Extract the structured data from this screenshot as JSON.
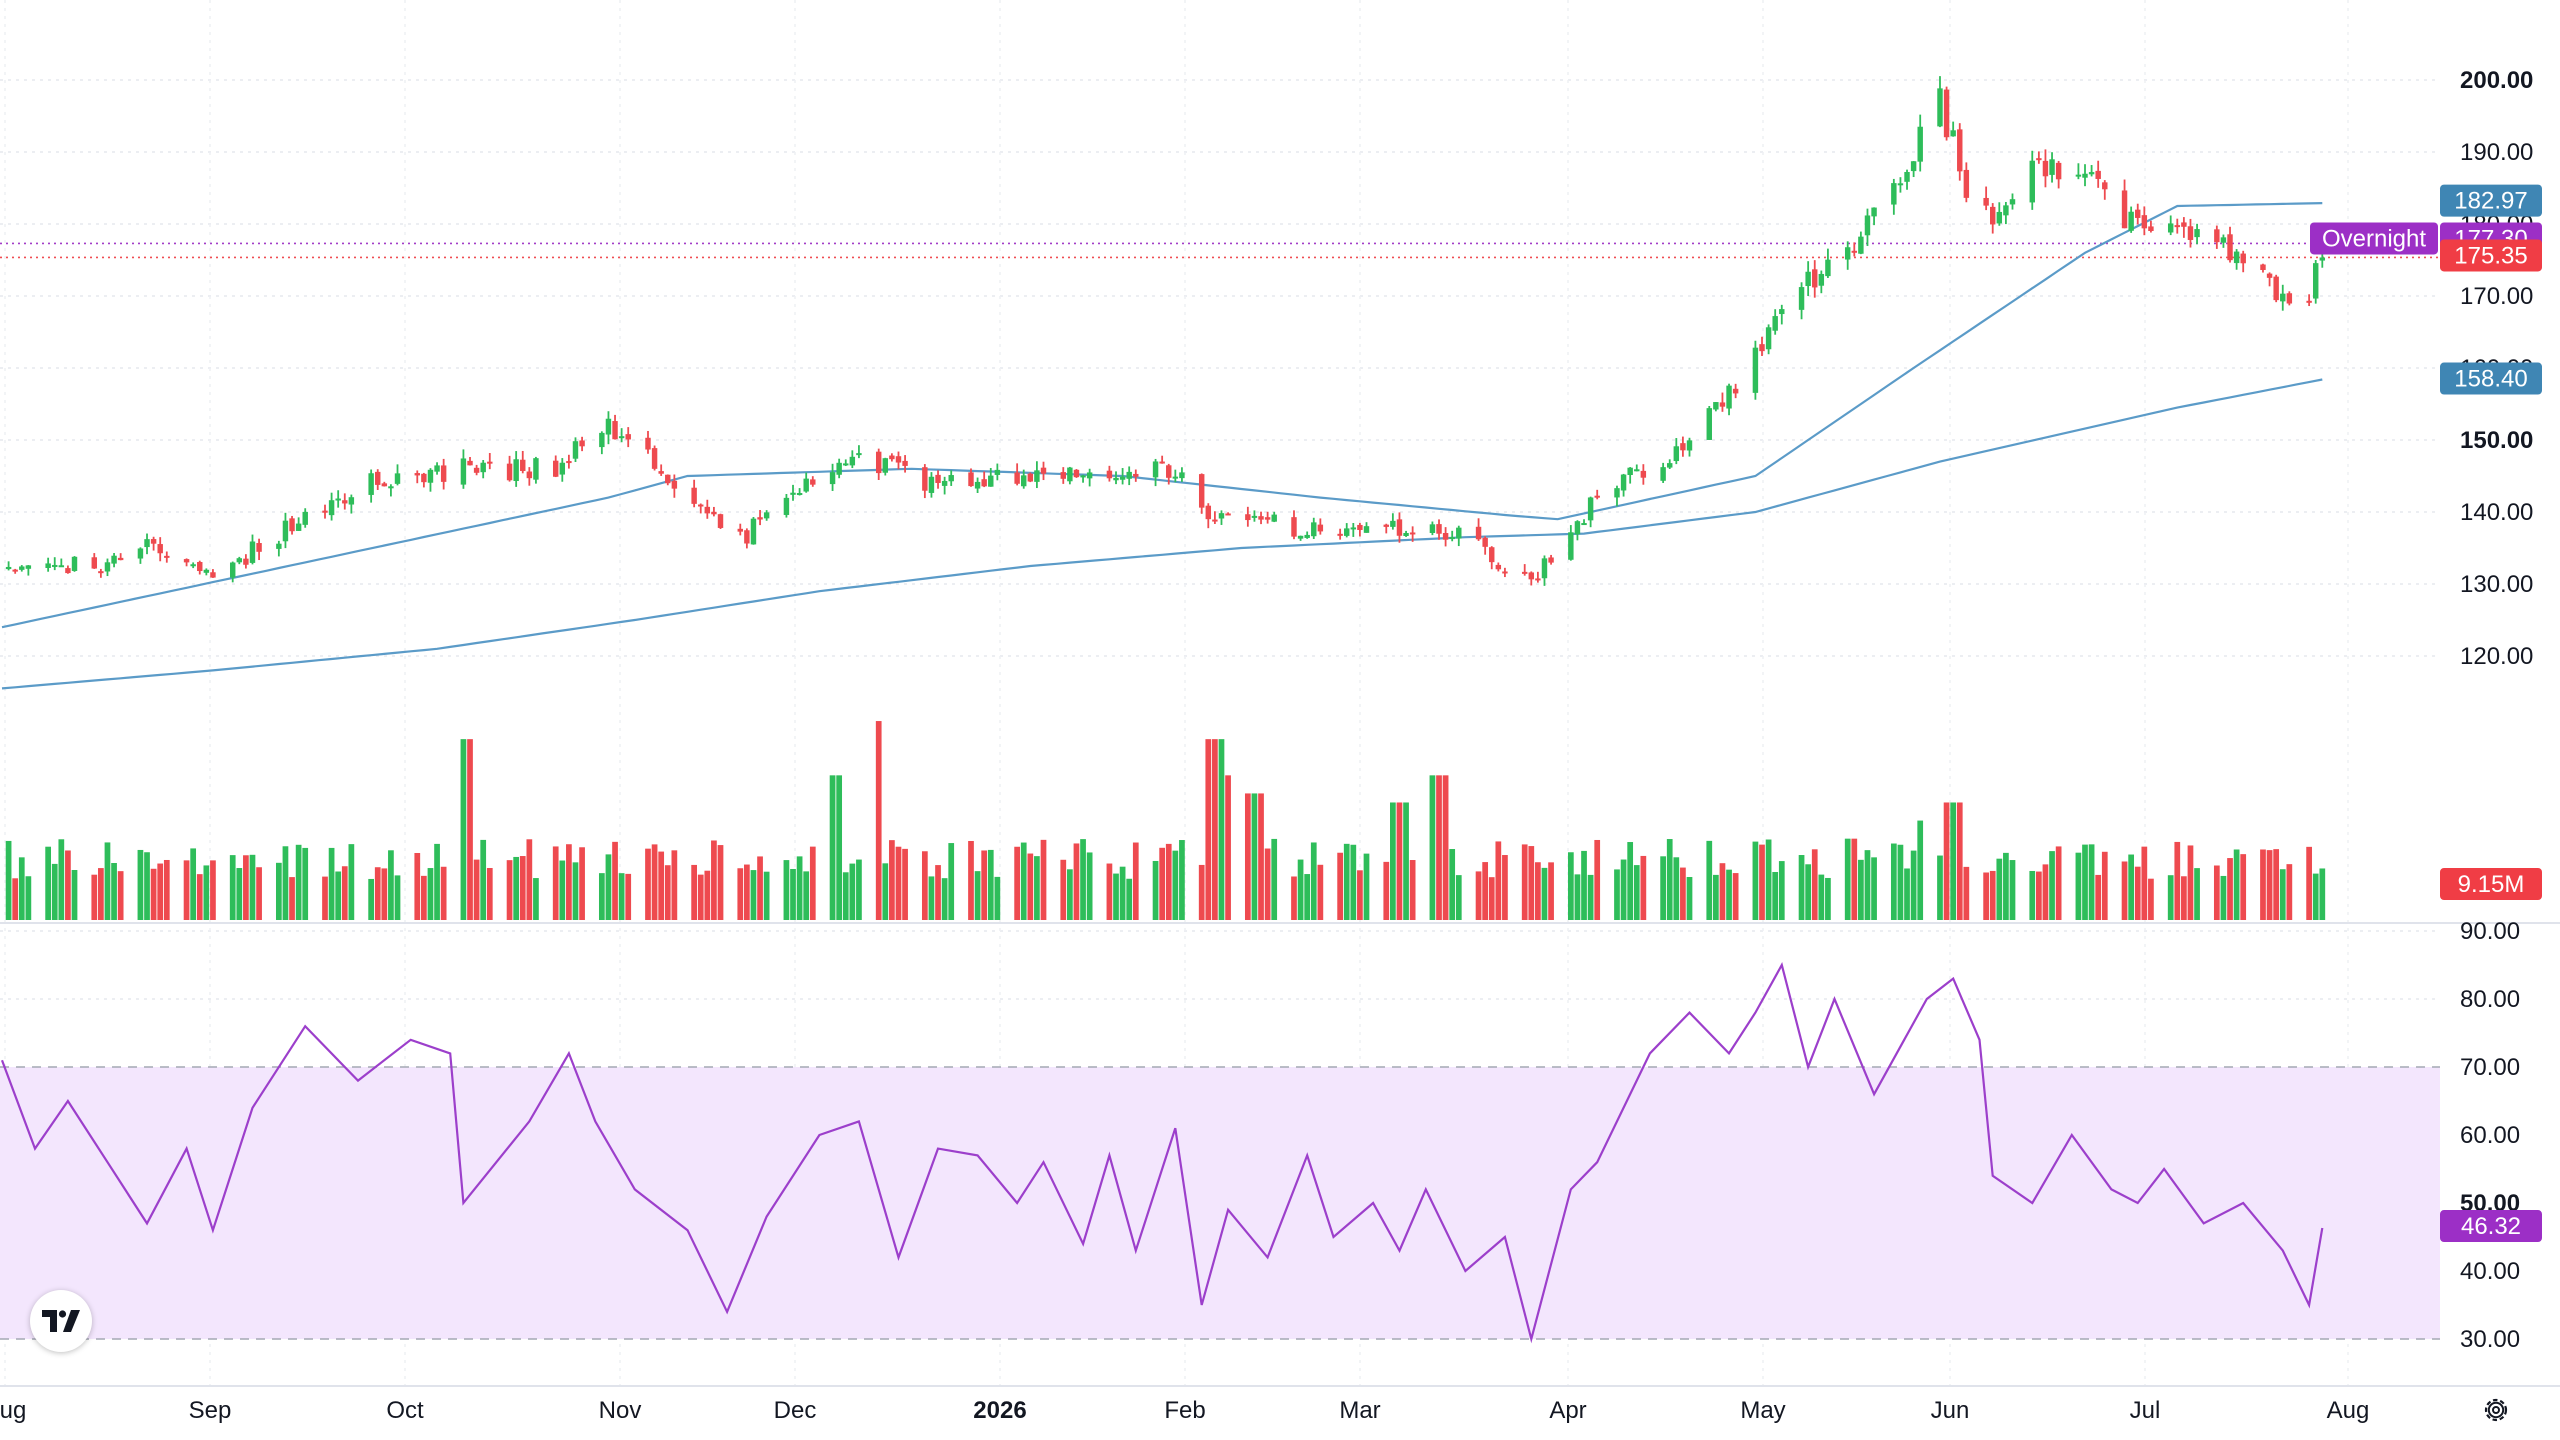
{
  "chart_data": {
    "type": "candlestick",
    "price_axis": {
      "ticks": [
        "200.00",
        "190.00",
        "180.00",
        "170.00",
        "160.00",
        "150.00",
        "140.00",
        "130.00",
        "120.00"
      ],
      "bold_ticks": [
        "200.00",
        "150.00"
      ],
      "range": [
        115,
        205
      ]
    },
    "time_axis": {
      "labels": [
        "Aug",
        "Sep",
        "Oct",
        "Nov",
        "Dec",
        "2026",
        "Feb",
        "Mar",
        "Apr",
        "May",
        "Jun",
        "Jul",
        "Aug"
      ]
    },
    "x_range_days": [
      0,
      365
    ],
    "first_date": "Aug",
    "start_close": 132,
    "moving_averages": {
      "ma_50": {
        "color": "#5b9bc8",
        "last_value": "182.97",
        "anchors": [
          [
            0,
            124
          ],
          [
            46,
            133
          ],
          [
            92,
            142
          ],
          [
            104,
            145
          ],
          [
            138,
            146
          ],
          [
            170,
            145
          ],
          [
            200,
            142
          ],
          [
            229,
            139.5
          ],
          [
            236,
            139
          ],
          [
            266,
            145
          ],
          [
            290,
            160
          ],
          [
            316,
            176
          ],
          [
            330,
            182.5
          ],
          [
            352,
            182.9
          ]
        ]
      },
      "ma_200": {
        "color": "#5b9bc8",
        "last_value": "158.40",
        "anchors": [
          [
            0,
            115.5
          ],
          [
            32,
            118
          ],
          [
            66,
            121
          ],
          [
            96,
            125
          ],
          [
            124,
            129
          ],
          [
            156,
            132.5
          ],
          [
            188,
            135
          ],
          [
            222,
            136.5
          ],
          [
            240,
            137
          ],
          [
            266,
            140
          ],
          [
            294,
            147
          ],
          [
            330,
            154.5
          ],
          [
            352,
            158.4
          ]
        ]
      }
    },
    "price_path": [
      [
        0,
        132
      ],
      [
        14,
        132.5
      ],
      [
        22,
        135
      ],
      [
        32,
        131
      ],
      [
        42,
        137
      ],
      [
        56,
        144
      ],
      [
        70,
        146
      ],
      [
        84,
        146
      ],
      [
        92,
        152
      ],
      [
        96,
        149
      ],
      [
        104,
        143
      ],
      [
        112,
        136
      ],
      [
        122,
        145
      ],
      [
        130,
        148
      ],
      [
        140,
        144
      ],
      [
        156,
        145
      ],
      [
        166,
        146
      ],
      [
        178,
        146
      ],
      [
        184,
        139
      ],
      [
        196,
        138
      ],
      [
        210,
        138
      ],
      [
        222,
        137
      ],
      [
        230,
        129
      ],
      [
        238,
        137
      ],
      [
        242,
        142
      ],
      [
        256,
        150
      ],
      [
        262,
        156
      ],
      [
        272,
        170
      ],
      [
        282,
        178
      ],
      [
        294,
        197
      ],
      [
        300,
        180
      ],
      [
        308,
        187
      ],
      [
        314,
        188
      ],
      [
        322,
        181
      ],
      [
        336,
        177
      ],
      [
        344,
        171
      ],
      [
        350,
        168
      ],
      [
        352,
        177.5
      ]
    ],
    "last_prices": {
      "overnight_label": "Overnight",
      "overnight_value": "177.30",
      "close": "175.35"
    },
    "volume": {
      "last_value": "9.15M"
    },
    "rsi": {
      "axis_ticks": [
        "90.00",
        "80.00",
        "70.00",
        "60.00",
        "50.00",
        "40.00",
        "30.00"
      ],
      "range": [
        28,
        92
      ],
      "upper_band": 70,
      "lower_band": 30,
      "last_value": "46.32",
      "anchors": [
        [
          0,
          71
        ],
        [
          5,
          58
        ],
        [
          10,
          65
        ],
        [
          16,
          56
        ],
        [
          22,
          47
        ],
        [
          28,
          58
        ],
        [
          32,
          46
        ],
        [
          38,
          64
        ],
        [
          46,
          76
        ],
        [
          54,
          68
        ],
        [
          62,
          74
        ],
        [
          68,
          72
        ],
        [
          70,
          50
        ],
        [
          80,
          62
        ],
        [
          86,
          72
        ],
        [
          90,
          62
        ],
        [
          96,
          52
        ],
        [
          104,
          46
        ],
        [
          110,
          34
        ],
        [
          116,
          48
        ],
        [
          124,
          60
        ],
        [
          130,
          62
        ],
        [
          136,
          42
        ],
        [
          142,
          58
        ],
        [
          148,
          57
        ],
        [
          154,
          50
        ],
        [
          158,
          56
        ],
        [
          164,
          44
        ],
        [
          168,
          57
        ],
        [
          172,
          43
        ],
        [
          178,
          61
        ],
        [
          182,
          35
        ],
        [
          186,
          49
        ],
        [
          192,
          42
        ],
        [
          198,
          57
        ],
        [
          202,
          45
        ],
        [
          208,
          50
        ],
        [
          212,
          43
        ],
        [
          216,
          52
        ],
        [
          222,
          40
        ],
        [
          228,
          45
        ],
        [
          232,
          30
        ],
        [
          238,
          52
        ],
        [
          242,
          56
        ],
        [
          250,
          72
        ],
        [
          256,
          78
        ],
        [
          262,
          72
        ],
        [
          266,
          78
        ],
        [
          270,
          85
        ],
        [
          274,
          70
        ],
        [
          278,
          80
        ],
        [
          284,
          66
        ],
        [
          292,
          80
        ],
        [
          296,
          83
        ],
        [
          300,
          74
        ],
        [
          302,
          54
        ],
        [
          308,
          50
        ],
        [
          314,
          60
        ],
        [
          320,
          52
        ],
        [
          324,
          50
        ],
        [
          328,
          55
        ],
        [
          334,
          47
        ],
        [
          340,
          50
        ],
        [
          346,
          43
        ],
        [
          350,
          35
        ],
        [
          352,
          46.32
        ]
      ]
    }
  }
}
